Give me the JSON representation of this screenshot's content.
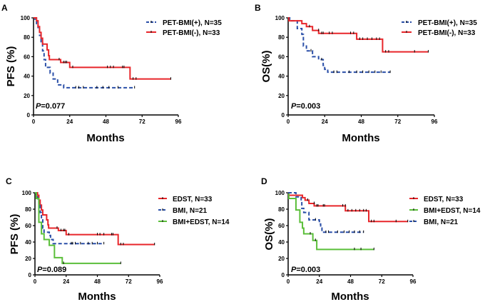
{
  "chart_data": [
    {
      "panel": "A",
      "type": "line",
      "step": true,
      "xlabel": "Months",
      "ylabel": "PFS (%)",
      "xlim": [
        0,
        96
      ],
      "ylim": [
        0,
        100
      ],
      "xticks": [
        0,
        24,
        48,
        72,
        96
      ],
      "yticks": [
        0,
        20,
        40,
        60,
        80,
        100
      ],
      "pvalue_prefix": "P",
      "pvalue": "=0.077",
      "legend_position": "top-right",
      "series": [
        {
          "name": "PET-BMI(+), N=35",
          "color": "#2a4fa8",
          "dash": true,
          "points": [
            [
              0,
              100
            ],
            [
              1,
              97
            ],
            [
              2,
              94
            ],
            [
              3,
              88
            ],
            [
              4,
              82
            ],
            [
              5,
              74
            ],
            [
              6,
              66
            ],
            [
              7,
              57
            ],
            [
              8,
              49
            ],
            [
              11,
              43
            ],
            [
              13,
              37
            ],
            [
              16,
              31
            ],
            [
              20,
              28
            ],
            [
              67,
              28
            ]
          ],
          "censors": [
            [
              28,
              28
            ],
            [
              30,
              28
            ],
            [
              33,
              28
            ],
            [
              42,
              28
            ],
            [
              46,
              28
            ],
            [
              50,
              28
            ],
            [
              56,
              28
            ],
            [
              67,
              28
            ]
          ]
        },
        {
          "name": "PET-BMI(-), N=33",
          "color": "#e8262a",
          "dash": false,
          "points": [
            [
              0,
              100
            ],
            [
              2,
              97
            ],
            [
              3,
              91
            ],
            [
              4,
              85
            ],
            [
              5,
              79
            ],
            [
              6,
              73
            ],
            [
              9,
              67
            ],
            [
              10,
              61
            ],
            [
              10.5,
              57
            ],
            [
              18,
              54
            ],
            [
              24,
              49
            ],
            [
              64,
              49
            ],
            [
              64,
              37
            ],
            [
              91,
              37
            ]
          ],
          "censors": [
            [
              17,
              57
            ],
            [
              20,
              54
            ],
            [
              21,
              54
            ],
            [
              22,
              54
            ],
            [
              26,
              49
            ],
            [
              49,
              49
            ],
            [
              51,
              49
            ],
            [
              53,
              49
            ],
            [
              59,
              49
            ],
            [
              60,
              49
            ],
            [
              66,
              37
            ],
            [
              68,
              37
            ],
            [
              91,
              37
            ]
          ]
        }
      ]
    },
    {
      "panel": "B",
      "type": "line",
      "step": true,
      "xlabel": "Months",
      "ylabel": "OS(%)",
      "xlim": [
        0,
        96
      ],
      "ylim": [
        0,
        100
      ],
      "xticks": [
        0,
        24,
        48,
        72,
        96
      ],
      "yticks": [
        0,
        20,
        40,
        60,
        80,
        100
      ],
      "pvalue_prefix": "P",
      "pvalue": "=0.003",
      "legend_position": "top-right",
      "series": [
        {
          "name": "PET-BMI(+), N=35",
          "color": "#2a4fa8",
          "dash": true,
          "points": [
            [
              0,
              100
            ],
            [
              1,
              97
            ],
            [
              6,
              89
            ],
            [
              9,
              83
            ],
            [
              10,
              71
            ],
            [
              12,
              66
            ],
            [
              16,
              60
            ],
            [
              20,
              57
            ],
            [
              23,
              51
            ],
            [
              24,
              47
            ],
            [
              26,
              44
            ],
            [
              67,
              44
            ]
          ],
          "censors": [
            [
              15,
              66
            ],
            [
              22,
              57
            ],
            [
              30,
              44
            ],
            [
              32,
              44
            ],
            [
              40,
              44
            ],
            [
              45,
              44
            ],
            [
              49,
              44
            ],
            [
              53,
              44
            ],
            [
              57,
              44
            ],
            [
              61,
              44
            ],
            [
              67,
              44
            ]
          ]
        },
        {
          "name": "PET-BMI(-), N=33",
          "color": "#e8262a",
          "dash": false,
          "points": [
            [
              0,
              100
            ],
            [
              0.5,
              97
            ],
            [
              7,
              97
            ],
            [
              9,
              94
            ],
            [
              12,
              91
            ],
            [
              16,
              87
            ],
            [
              20,
              84
            ],
            [
              45,
              84
            ],
            [
              45,
              78
            ],
            [
              62,
              78
            ],
            [
              62,
              65
            ],
            [
              92,
              65
            ]
          ],
          "censors": [
            [
              14,
              91
            ],
            [
              20,
              87
            ],
            [
              22,
              84
            ],
            [
              23,
              84
            ],
            [
              27,
              84
            ],
            [
              29,
              84
            ],
            [
              41,
              84
            ],
            [
              43,
              84
            ],
            [
              47,
              78
            ],
            [
              49,
              78
            ],
            [
              52,
              78
            ],
            [
              55,
              78
            ],
            [
              58,
              78
            ],
            [
              60,
              78
            ],
            [
              64,
              65
            ],
            [
              66,
              65
            ],
            [
              83,
              65
            ],
            [
              92,
              65
            ]
          ]
        }
      ]
    },
    {
      "panel": "C",
      "type": "line",
      "step": true,
      "xlabel": "Months",
      "ylabel": "PFS (%)",
      "xlim": [
        0,
        96
      ],
      "ylim": [
        0,
        100
      ],
      "xticks": [
        0,
        24,
        48,
        72,
        96
      ],
      "yticks": [
        0,
        20,
        40,
        60,
        80,
        100
      ],
      "pvalue_prefix": "P",
      "pvalue": "=0.089",
      "legend_position": "top-right",
      "series": [
        {
          "name": "EDST, N=33",
          "color": "#e8262a",
          "dash": false,
          "points": [
            [
              0,
              100
            ],
            [
              2,
              97
            ],
            [
              3,
              91
            ],
            [
              4,
              85
            ],
            [
              5,
              79
            ],
            [
              6,
              73
            ],
            [
              9,
              67
            ],
            [
              10,
              61
            ],
            [
              10.5,
              57
            ],
            [
              18,
              54
            ],
            [
              24,
              49
            ],
            [
              64,
              49
            ],
            [
              64,
              37
            ],
            [
              92,
              37
            ]
          ],
          "censors": [
            [
              17,
              57
            ],
            [
              20,
              54
            ],
            [
              22,
              54
            ],
            [
              23,
              54
            ],
            [
              26,
              49
            ],
            [
              48,
              49
            ],
            [
              50,
              49
            ],
            [
              53,
              49
            ],
            [
              59,
              49
            ],
            [
              60,
              49
            ],
            [
              66,
              37
            ],
            [
              68,
              37
            ],
            [
              92,
              37
            ]
          ]
        },
        {
          "name": "BMI, N=21",
          "color": "#2a4fa8",
          "dash": true,
          "points": [
            [
              0,
              100
            ],
            [
              1,
              95
            ],
            [
              2,
              90
            ],
            [
              3,
              86
            ],
            [
              4,
              76
            ],
            [
              5,
              67
            ],
            [
              6,
              57
            ],
            [
              7,
              52
            ],
            [
              11,
              48
            ],
            [
              12,
              43
            ],
            [
              14,
              38
            ],
            [
              53,
              38
            ]
          ],
          "censors": [
            [
              28,
              38
            ],
            [
              29,
              38
            ],
            [
              31,
              38
            ],
            [
              35,
              38
            ],
            [
              41,
              38
            ],
            [
              44,
              38
            ],
            [
              48,
              38
            ],
            [
              53,
              38
            ]
          ]
        },
        {
          "name": "BMI+EDST, N=14",
          "color": "#5bbf3a",
          "dash": false,
          "points": [
            [
              0,
              100
            ],
            [
              1,
              93
            ],
            [
              3,
              64
            ],
            [
              5,
              50
            ],
            [
              7,
              43
            ],
            [
              11,
              36
            ],
            [
              15,
              21
            ],
            [
              21,
              14
            ],
            [
              66,
              14
            ]
          ],
          "censors": [
            [
              22,
              14
            ],
            [
              66,
              14
            ]
          ]
        }
      ]
    },
    {
      "panel": "D",
      "type": "line",
      "step": true,
      "xlabel": "Months",
      "ylabel": "OS(%)",
      "xlim": [
        0,
        96
      ],
      "ylim": [
        0,
        100
      ],
      "xticks": [
        0,
        24,
        48,
        72,
        96
      ],
      "yticks": [
        0,
        20,
        40,
        60,
        80,
        100
      ],
      "pvalue_prefix": "P",
      "pvalue": "=0.003",
      "legend_position": "top-right",
      "series": [
        {
          "name": "EDST, N=33",
          "color": "#e8262a",
          "dash": false,
          "points": [
            [
              0,
              100
            ],
            [
              0.5,
              97
            ],
            [
              9,
              97
            ],
            [
              11,
              94
            ],
            [
              13,
              91
            ],
            [
              16,
              87
            ],
            [
              20,
              84
            ],
            [
              44,
              84
            ],
            [
              44,
              78
            ],
            [
              62,
              78
            ],
            [
              62,
              65
            ],
            [
              92,
              65
            ]
          ],
          "censors": [
            [
              15,
              91
            ],
            [
              20,
              87
            ],
            [
              22,
              84
            ],
            [
              23,
              84
            ],
            [
              27,
              84
            ],
            [
              28,
              84
            ],
            [
              42,
              84
            ],
            [
              44,
              84
            ],
            [
              46,
              78
            ],
            [
              49,
              78
            ],
            [
              52,
              78
            ],
            [
              55,
              78
            ],
            [
              58,
              78
            ],
            [
              60,
              78
            ],
            [
              64,
              65
            ],
            [
              66,
              65
            ],
            [
              83,
              65
            ],
            [
              92,
              65
            ]
          ]
        },
        {
          "name": "BMI+EDST, N=14",
          "color": "#5bbf3a",
          "dash": false,
          "points": [
            [
              0,
              100
            ],
            [
              0.5,
              93
            ],
            [
              5,
              93
            ],
            [
              6,
              79
            ],
            [
              9,
              79
            ],
            [
              9,
              64
            ],
            [
              11,
              57
            ],
            [
              12,
              50
            ],
            [
              19,
              50
            ],
            [
              19,
              42
            ],
            [
              22,
              42
            ],
            [
              22,
              31
            ],
            [
              66,
              31
            ]
          ],
          "censors": [
            [
              17,
              50
            ],
            [
              21,
              42
            ],
            [
              51,
              31
            ],
            [
              56,
              31
            ],
            [
              66,
              31
            ]
          ]
        },
        {
          "name": "BMI, N=21",
          "color": "#2a4fa8",
          "dash": true,
          "points": [
            [
              0,
              100
            ],
            [
              6,
              100
            ],
            [
              6,
              95
            ],
            [
              9,
              95
            ],
            [
              10,
              90
            ],
            [
              10.5,
              81
            ],
            [
              12,
              76
            ],
            [
              16,
              67
            ],
            [
              24,
              62
            ],
            [
              25,
              57
            ],
            [
              26,
              52
            ],
            [
              58,
              52
            ]
          ],
          "censors": [
            [
              21,
              67
            ],
            [
              29,
              52
            ],
            [
              31,
              52
            ],
            [
              38,
              52
            ],
            [
              43,
              52
            ],
            [
              47,
              52
            ],
            [
              51,
              52
            ],
            [
              55,
              52
            ],
            [
              58,
              52
            ]
          ]
        }
      ]
    }
  ],
  "panel_labels": [
    "A",
    "B",
    "C",
    "D"
  ]
}
